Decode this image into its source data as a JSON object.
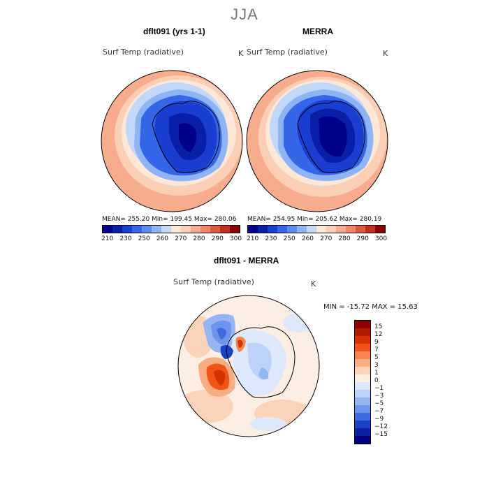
{
  "figure": {
    "season": "JJA",
    "units": "K"
  },
  "panel_left": {
    "title": "dflt091 (yrs 1-1)",
    "variable": "Surf Temp (radiative)",
    "units": "K",
    "stats": "MEAN= 255.20   Min= 199.45   Max= 280.06"
  },
  "panel_right": {
    "title": "MERRA",
    "variable": "Surf Temp (radiative)",
    "units": "K",
    "stats": "MEAN= 254.95   Min= 205.62   Max= 280.19"
  },
  "panel_diff": {
    "title": "dflt091 - MERRA",
    "variable": "Surf Temp (radiative)",
    "units": "K",
    "stats": "MIN = -15.72 MAX =  15.63"
  },
  "abs_colorbar": {
    "colors": [
      "#00008b",
      "#0a1fa8",
      "#1a3fd0",
      "#3466e8",
      "#5a8cf0",
      "#8fb4f5",
      "#c3d8f8",
      "#fde8d8",
      "#fbcfb5",
      "#f7ad8d",
      "#ef8463",
      "#de5a3e",
      "#c2301e",
      "#8b0000"
    ],
    "tick_labels": [
      "210",
      "230",
      "250",
      "260",
      "270",
      "280",
      "290",
      "300"
    ]
  },
  "diff_colorbar": {
    "colors": [
      "#8b0000",
      "#b01a00",
      "#d63200",
      "#f05418",
      "#f6844c",
      "#f8ad82",
      "#fbd3ba",
      "#fdeee4",
      "#dde8fb",
      "#bcd2f8",
      "#96b6f3",
      "#6e94ec",
      "#3e6ae0",
      "#1b43c8",
      "#0a22a0",
      "#000080"
    ],
    "tick_labels": [
      "15",
      "12",
      "9",
      "7",
      "5",
      "3",
      "1",
      "0",
      "−1",
      "−3",
      "−5",
      "−7",
      "−9",
      "−12",
      "−15"
    ]
  }
}
